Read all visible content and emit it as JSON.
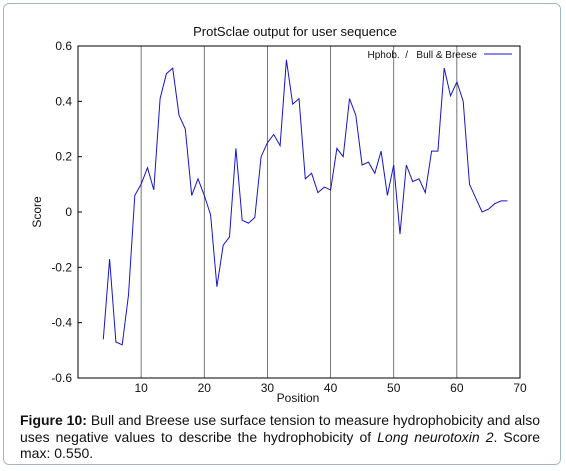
{
  "chart_data": {
    "type": "line",
    "title": "ProtSclae output for user sequence",
    "xlabel": "Position",
    "ylabel": "Score",
    "xlim": [
      0,
      70
    ],
    "ylim": [
      -0.6,
      0.6
    ],
    "xticks": [
      10,
      20,
      30,
      40,
      50,
      60,
      70
    ],
    "yticks": [
      -0.6,
      -0.4,
      -0.2,
      0,
      0.2,
      0.4,
      0.6
    ],
    "xtick_labels": [
      "10",
      "20",
      "30",
      "40",
      "50",
      "60",
      "70"
    ],
    "ytick_labels": [
      "-0.6",
      "-0.4",
      "-0.2",
      "0",
      "0.2",
      "0.4",
      "0.6"
    ],
    "grid": "vertical lines at x ticks",
    "legend_position": "top-right",
    "colors": {
      "series": "#1515cc",
      "grid": "#555555",
      "axis": "#000000"
    },
    "series": [
      {
        "name": "Hphob.  /   Bull & Breese",
        "x": [
          4,
          5,
          6,
          7,
          8,
          9,
          10,
          11,
          12,
          13,
          14,
          15,
          16,
          17,
          18,
          19,
          20,
          21,
          22,
          23,
          24,
          25,
          26,
          27,
          28,
          29,
          30,
          31,
          32,
          33,
          34,
          35,
          36,
          37,
          38,
          39,
          40,
          41,
          42,
          43,
          44,
          45,
          46,
          47,
          48,
          49,
          50,
          51,
          52,
          53,
          54,
          55,
          56,
          57,
          58,
          59,
          60,
          61,
          62,
          63,
          64,
          65,
          66,
          67,
          68
        ],
        "y": [
          -0.46,
          -0.17,
          -0.47,
          -0.48,
          -0.3,
          0.06,
          0.1,
          0.16,
          0.08,
          0.41,
          0.5,
          0.52,
          0.35,
          0.3,
          0.06,
          0.12,
          0.06,
          -0.01,
          -0.27,
          -0.12,
          -0.09,
          0.23,
          -0.03,
          -0.04,
          -0.02,
          0.2,
          0.25,
          0.28,
          0.24,
          0.55,
          0.39,
          0.41,
          0.12,
          0.14,
          0.07,
          0.09,
          0.08,
          0.23,
          0.2,
          0.41,
          0.35,
          0.17,
          0.18,
          0.14,
          0.22,
          0.06,
          0.17,
          -0.08,
          0.17,
          0.11,
          0.12,
          0.07,
          0.22,
          0.22,
          0.52,
          0.42,
          0.47,
          0.4,
          0.1,
          0.05,
          0.0,
          0.01,
          0.03,
          0.04,
          0.04
        ]
      }
    ]
  },
  "caption": {
    "label": "Figure 10:",
    "text_part1": " Bull and Breese use surface tension to measure hydrophobicity and also uses negative values to describe the hydrophobicity of ",
    "italic": "Long neurotoxin 2",
    "text_part2": ". Score max: 0.550."
  }
}
